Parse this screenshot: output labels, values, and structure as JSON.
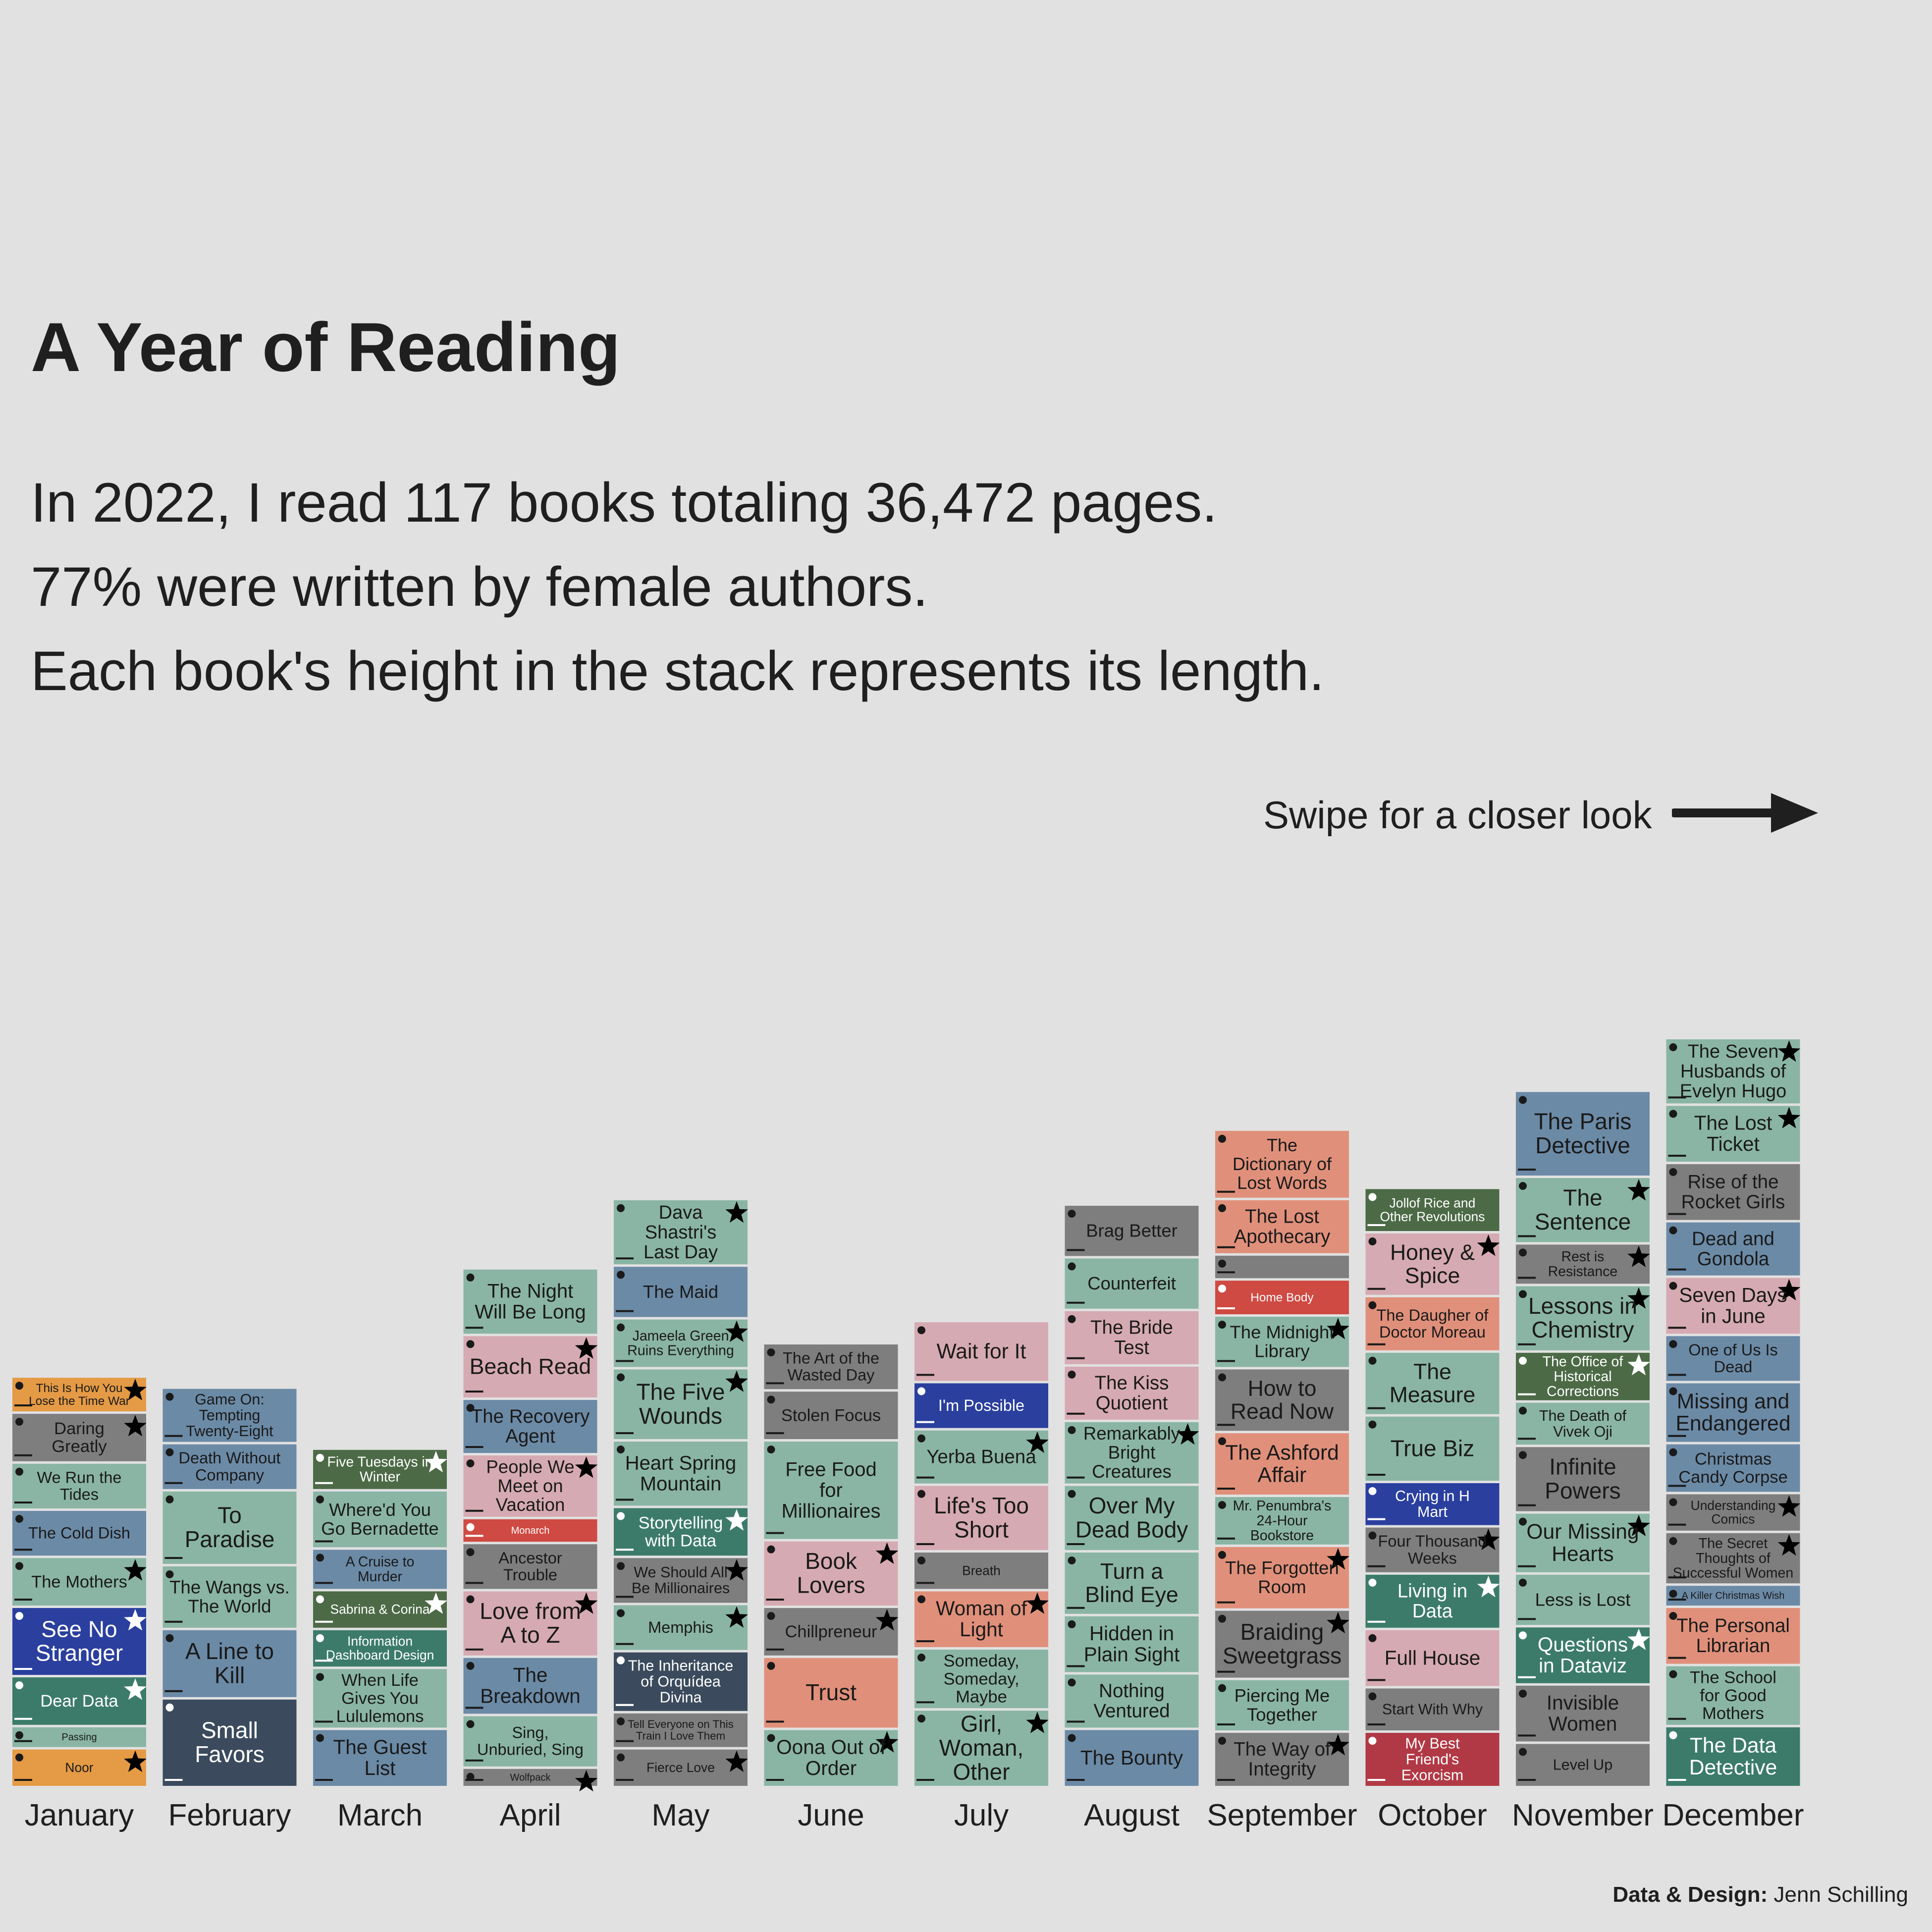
{
  "title": "A Year of Reading",
  "subtitle_lines": [
    "In 2022, I read 117 books totaling 36,472 pages.",
    "77% were written by female authors.",
    "Each book's height in the stack represents its length."
  ],
  "swipe_text": "Swipe for a closer look",
  "credit_label": "Data & Design:",
  "credit_name": "Jenn Schilling",
  "colors": {
    "background": "#e1e1e1",
    "sage": "#8ab5a4",
    "gray": "#7e7e7e",
    "steel": "#6b8aa6",
    "pink": "#d6aab2",
    "salmon": "#e0907a",
    "orange": "#e59a45",
    "navy": "#2a3f9e",
    "darkgreen": "#3c7b6a",
    "olive": "#4c6a46",
    "slate": "#3b4b5d",
    "red": "#cf4a42",
    "crimson": "#b13945"
  },
  "chart_data": {
    "type": "bar",
    "stacked": true,
    "xlabel": "",
    "ylabel": "",
    "legend": "none",
    "categories": [
      "January",
      "February",
      "March",
      "April",
      "May",
      "June",
      "July",
      "August",
      "September",
      "October",
      "November",
      "December"
    ],
    "y_unit": "pages (estimated from stack heights)",
    "months": [
      {
        "name": "January",
        "books": [
          {
            "title": "Noor",
            "pages": 224,
            "color": "orange",
            "star": true
          },
          {
            "title": "Passing",
            "pages": 128,
            "color": "sage",
            "star": false
          },
          {
            "title": "Dear Data",
            "pages": 288,
            "color": "darkgreen",
            "star": true
          },
          {
            "title": "See No Stranger",
            "pages": 400,
            "color": "navy",
            "star": true
          },
          {
            "title": "The Mothers",
            "pages": 288,
            "color": "sage",
            "star": true
          },
          {
            "title": "The Cold Dish",
            "pages": 272,
            "color": "steel",
            "star": false
          },
          {
            "title": "We Run the Tides",
            "pages": 272,
            "color": "sage",
            "star": false
          },
          {
            "title": "Daring Greatly",
            "pages": 288,
            "color": "gray",
            "star": true
          },
          {
            "title": "This Is How You Lose the Time War",
            "pages": 208,
            "color": "orange",
            "star": true
          }
        ]
      },
      {
        "name": "February",
        "books": [
          {
            "title": "Small Favors",
            "pages": 512,
            "color": "slate",
            "star": false
          },
          {
            "title": "A Line to Kill",
            "pages": 400,
            "color": "steel",
            "star": false
          },
          {
            "title": "The Wangs vs. The World",
            "pages": 368,
            "color": "sage",
            "star": false
          },
          {
            "title": "To Paradise",
            "pages": 432,
            "color": "sage",
            "star": false
          },
          {
            "title": "Death Without Company",
            "pages": 272,
            "color": "steel",
            "star": false
          },
          {
            "title": "Game On: Tempting Twenty-Eight",
            "pages": 320,
            "color": "steel",
            "star": false
          }
        ]
      },
      {
        "name": "March",
        "books": [
          {
            "title": "The Guest List",
            "pages": 336,
            "color": "steel",
            "star": false
          },
          {
            "title": "When Life Gives You Lululemons",
            "pages": 352,
            "color": "sage",
            "star": false
          },
          {
            "title": "Information Dashboard Design",
            "pages": 224,
            "color": "darkgreen",
            "star": false
          },
          {
            "title": "Sabrina & Corina",
            "pages": 224,
            "color": "olive",
            "star": true
          },
          {
            "title": "A Cruise to Murder",
            "pages": 240,
            "color": "steel",
            "star": false
          },
          {
            "title": "Where'd You Go Bernadette",
            "pages": 336,
            "color": "sage",
            "star": false
          },
          {
            "title": "Five Tuesdays in Winter",
            "pages": 240,
            "color": "olive",
            "star": true
          }
        ]
      },
      {
        "name": "April",
        "books": [
          {
            "title": "Wolfpack",
            "pages": 112,
            "color": "gray",
            "star": true
          },
          {
            "title": "Sing, Unburied, Sing",
            "pages": 304,
            "color": "sage",
            "star": false
          },
          {
            "title": "The Breakdown",
            "pages": 336,
            "color": "steel",
            "star": false
          },
          {
            "title": "Love from A to Z",
            "pages": 384,
            "color": "pink",
            "star": true
          },
          {
            "title": "Ancestor Trouble",
            "pages": 272,
            "color": "gray",
            "star": false
          },
          {
            "title": "Monarch",
            "pages": 144,
            "color": "red",
            "star": false
          },
          {
            "title": "People We Meet on Vacation",
            "pages": 368,
            "color": "pink",
            "star": true
          },
          {
            "title": "The Recovery Agent",
            "pages": 320,
            "color": "steel",
            "star": false
          },
          {
            "title": "Beach Read",
            "pages": 368,
            "color": "pink",
            "star": true
          },
          {
            "title": "The Night Will Be Long",
            "pages": 384,
            "color": "sage",
            "star": false
          }
        ]
      },
      {
        "name": "May",
        "books": [
          {
            "title": "Fierce Love",
            "pages": 224,
            "color": "gray",
            "star": true
          },
          {
            "title": "Tell Everyone on This Train I Love Them",
            "pages": 208,
            "color": "gray",
            "star": false
          },
          {
            "title": "The Inheritance of Orquídea Divina",
            "pages": 352,
            "color": "slate",
            "star": false
          },
          {
            "title": "Memphis",
            "pages": 272,
            "color": "sage",
            "star": true
          },
          {
            "title": "We Should All Be Millionaires",
            "pages": 272,
            "color": "gray",
            "star": true
          },
          {
            "title": "Storytelling with Data",
            "pages": 288,
            "color": "darkgreen",
            "star": true
          },
          {
            "title": "Heart Spring Mountain",
            "pages": 384,
            "color": "sage",
            "star": false
          },
          {
            "title": "The Five Wounds",
            "pages": 416,
            "color": "sage",
            "star": true
          },
          {
            "title": "Jameela Green Ruins Everything",
            "pages": 288,
            "color": "sage",
            "star": true
          },
          {
            "title": "The Maid",
            "pages": 304,
            "color": "steel",
            "star": false
          },
          {
            "title": "Dava Shastri's Last Day",
            "pages": 384,
            "color": "sage",
            "star": true
          }
        ]
      },
      {
        "name": "June",
        "books": [
          {
            "title": "Oona Out of Order",
            "pages": 336,
            "color": "sage",
            "star": true
          },
          {
            "title": "Trust",
            "pages": 416,
            "color": "salmon",
            "star": false
          },
          {
            "title": "Chillpreneur",
            "pages": 288,
            "color": "gray",
            "star": true
          },
          {
            "title": "Book Lovers",
            "pages": 384,
            "color": "pink",
            "star": true
          },
          {
            "title": "Free Food for Millionaires",
            "pages": 576,
            "color": "sage",
            "star": false
          },
          {
            "title": "Stolen Focus",
            "pages": 288,
            "color": "gray",
            "star": false
          },
          {
            "title": "The Art of the Wasted Day",
            "pages": 272,
            "color": "gray",
            "star": false
          }
        ]
      },
      {
        "name": "July",
        "books": [
          {
            "title": "Girl, Woman, Other",
            "pages": 448,
            "color": "sage",
            "star": true
          },
          {
            "title": "Someday, Someday, Maybe",
            "pages": 352,
            "color": "sage",
            "star": false
          },
          {
            "title": "Woman of Light",
            "pages": 336,
            "color": "salmon",
            "star": true
          },
          {
            "title": "Breath",
            "pages": 224,
            "color": "gray",
            "star": false
          },
          {
            "title": "Life's Too Short",
            "pages": 384,
            "color": "pink",
            "star": false
          },
          {
            "title": "Yerba Buena",
            "pages": 320,
            "color": "sage",
            "star": true
          },
          {
            "title": "I'm Possible",
            "pages": 272,
            "color": "navy",
            "star": false
          },
          {
            "title": "Wait for It",
            "pages": 352,
            "color": "pink",
            "star": false
          }
        ]
      },
      {
        "name": "August",
        "books": [
          {
            "title": "The Bounty",
            "pages": 336,
            "color": "steel",
            "star": false
          },
          {
            "title": "Nothing Ventured",
            "pages": 320,
            "color": "sage",
            "star": false
          },
          {
            "title": "Hidden in Plain Sight",
            "pages": 336,
            "color": "sage",
            "star": false
          },
          {
            "title": "Turn a Blind Eye",
            "pages": 368,
            "color": "sage",
            "star": false
          },
          {
            "title": "Over My Dead Body",
            "pages": 384,
            "color": "sage",
            "star": false
          },
          {
            "title": "Remarkably Bright Creatures",
            "pages": 368,
            "color": "sage",
            "star": true
          },
          {
            "title": "The Kiss Quotient",
            "pages": 320,
            "color": "pink",
            "star": false
          },
          {
            "title": "The Bride Test",
            "pages": 320,
            "color": "pink",
            "star": false
          },
          {
            "title": "Counterfeit",
            "pages": 304,
            "color": "sage",
            "star": false
          },
          {
            "title": "Brag Better",
            "pages": 304,
            "color": "gray",
            "star": false
          }
        ]
      },
      {
        "name": "September",
        "books": [
          {
            "title": "The Way of Integrity",
            "pages": 320,
            "color": "gray",
            "star": true
          },
          {
            "title": "Piercing Me Together",
            "pages": 304,
            "color": "sage",
            "star": false
          },
          {
            "title": "Braiding Sweetgrass",
            "pages": 400,
            "color": "gray",
            "star": true
          },
          {
            "title": "The Forgotten Room",
            "pages": 368,
            "color": "salmon",
            "star": true
          },
          {
            "title": "Mr. Penumbra's 24-Hour Bookstore",
            "pages": 288,
            "color": "sage",
            "star": false
          },
          {
            "title": "The Ashford Affair",
            "pages": 368,
            "color": "salmon",
            "star": false
          },
          {
            "title": "How to Read Now",
            "pages": 368,
            "color": "gray",
            "star": false
          },
          {
            "title": "The Midnight Library",
            "pages": 304,
            "color": "sage",
            "star": true
          },
          {
            "title": "Home Body",
            "pages": 208,
            "color": "red",
            "star": false
          },
          {
            "title": "",
            "pages": 144,
            "color": "gray",
            "star": false
          },
          {
            "title": "The Lost Apothecary",
            "pages": 320,
            "color": "salmon",
            "star": false
          },
          {
            "title": "The Dictionary of Lost Words",
            "pages": 400,
            "color": "salmon",
            "star": false
          }
        ]
      },
      {
        "name": "October",
        "books": [
          {
            "title": "My Best Friend's Exorcism",
            "pages": 320,
            "color": "crimson",
            "star": false
          },
          {
            "title": "Start With Why",
            "pages": 256,
            "color": "gray",
            "star": false
          },
          {
            "title": "Full House",
            "pages": 336,
            "color": "pink",
            "star": false
          },
          {
            "title": "Living in Data",
            "pages": 320,
            "color": "darkgreen",
            "star": true
          },
          {
            "title": "Four Thousand Weeks",
            "pages": 272,
            "color": "gray",
            "star": true
          },
          {
            "title": "Crying in H Mart",
            "pages": 256,
            "color": "navy",
            "star": false
          },
          {
            "title": "True Biz",
            "pages": 384,
            "color": "sage",
            "star": false
          },
          {
            "title": "The Measure",
            "pages": 368,
            "color": "sage",
            "star": false
          },
          {
            "title": "The Daugher of Doctor Moreau",
            "pages": 320,
            "color": "salmon",
            "star": false
          },
          {
            "title": "Honey & Spice",
            "pages": 368,
            "color": "pink",
            "star": true
          },
          {
            "title": "Jollof Rice and Other Revolutions",
            "pages": 256,
            "color": "olive",
            "star": false
          }
        ]
      },
      {
        "name": "November",
        "books": [
          {
            "title": "Level Up",
            "pages": 256,
            "color": "gray",
            "star": false
          },
          {
            "title": "Invisible Women",
            "pages": 336,
            "color": "gray",
            "star": false
          },
          {
            "title": "Questions in Dataviz",
            "pages": 336,
            "color": "darkgreen",
            "star": true
          },
          {
            "title": "Less is Lost",
            "pages": 304,
            "color": "sage",
            "star": false
          },
          {
            "title": "Our Missing Hearts",
            "pages": 352,
            "color": "sage",
            "star": true
          },
          {
            "title": "Infinite Powers",
            "pages": 384,
            "color": "gray",
            "star": false
          },
          {
            "title": "The Death of Vivek Oji",
            "pages": 256,
            "color": "sage",
            "star": false
          },
          {
            "title": "The Office of Historical Corrections",
            "pages": 288,
            "color": "olive",
            "star": true
          },
          {
            "title": "Lessons in Chemistry",
            "pages": 384,
            "color": "sage",
            "star": true
          },
          {
            "title": "Rest is Resistance",
            "pages": 240,
            "color": "gray",
            "star": true
          },
          {
            "title": "The Sentence",
            "pages": 384,
            "color": "sage",
            "star": true
          },
          {
            "title": "The Paris Detective",
            "pages": 496,
            "color": "steel",
            "star": false
          }
        ]
      },
      {
        "name": "December",
        "books": [
          {
            "title": "The Data Detective",
            "pages": 352,
            "color": "darkgreen",
            "star": false
          },
          {
            "title": "The School for Good Mothers",
            "pages": 352,
            "color": "sage",
            "star": false
          },
          {
            "title": "The Personal Librarian",
            "pages": 336,
            "color": "salmon",
            "star": false
          },
          {
            "title": "A Killer Christmas Wish",
            "pages": 128,
            "color": "steel",
            "star": false
          },
          {
            "title": "The Secret Thoughts of Successful Women",
            "pages": 304,
            "color": "gray",
            "star": true
          },
          {
            "title": "Understanding Comics",
            "pages": 224,
            "color": "gray",
            "star": true
          },
          {
            "title": "Christmas Candy Corpse",
            "pages": 288,
            "color": "steel",
            "star": false
          },
          {
            "title": "Missing and Endangered",
            "pages": 352,
            "color": "steel",
            "star": false
          },
          {
            "title": "One of Us Is Dead",
            "pages": 272,
            "color": "steel",
            "star": false
          },
          {
            "title": "Seven Days in June",
            "pages": 336,
            "color": "pink",
            "star": true
          },
          {
            "title": "Dead and Gondola",
            "pages": 320,
            "color": "steel",
            "star": false
          },
          {
            "title": "Rise of the Rocket Girls",
            "pages": 336,
            "color": "gray",
            "star": false
          },
          {
            "title": "The Lost Ticket",
            "pages": 336,
            "color": "sage",
            "star": true
          },
          {
            "title": "The Seven Husbands of Evelyn Hugo",
            "pages": 384,
            "color": "sage",
            "star": true
          }
        ]
      }
    ]
  }
}
